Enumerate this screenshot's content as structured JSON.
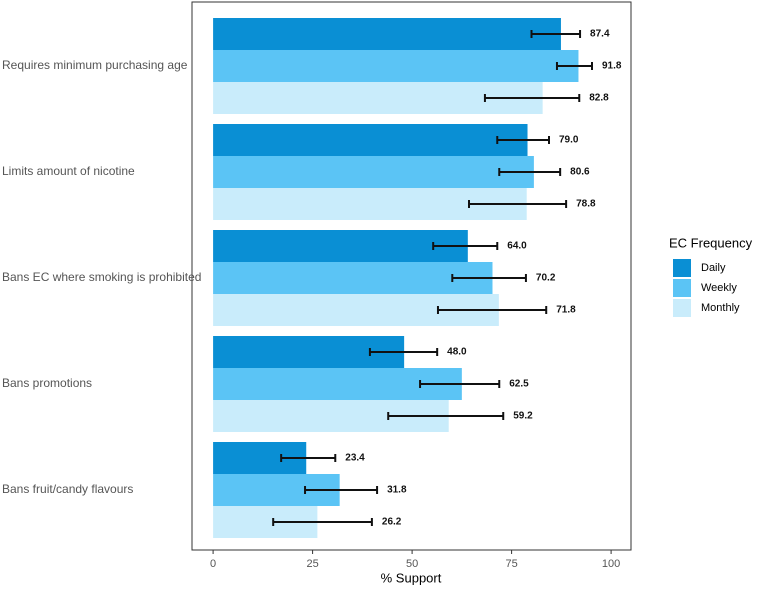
{
  "chart_data": {
    "type": "bar",
    "orientation": "horizontal",
    "x_label": "% Support",
    "legend_title": "EC Frequency",
    "legend_position": "right",
    "grid": false,
    "categories": [
      "Requires minimum purchasing age",
      "Limits amount of nicotine",
      "Bans EC where smoking is prohibited",
      "Bans promotions",
      "Bans fruit/candy flavours"
    ],
    "series": [
      {
        "name": "Daily",
        "color": "#0a8fd4",
        "values": [
          87.4,
          79.0,
          64.0,
          48.0,
          23.4
        ],
        "value_labels": [
          "87.4",
          "79.0",
          "64.0",
          "48.0",
          "23.4"
        ],
        "err_low": [
          80.0,
          71.4,
          55.3,
          39.4,
          17.1
        ],
        "err_high": [
          92.2,
          84.4,
          71.4,
          56.3,
          30.7
        ]
      },
      {
        "name": "Weekly",
        "color": "#5bc4f5",
        "values": [
          91.8,
          80.6,
          70.2,
          62.5,
          31.8
        ],
        "value_labels": [
          "91.8",
          "80.6",
          "70.2",
          "62.5",
          "31.8"
        ],
        "err_low": [
          86.4,
          71.9,
          60.1,
          52.0,
          23.1
        ],
        "err_high": [
          95.2,
          87.2,
          78.6,
          71.9,
          41.2
        ]
      },
      {
        "name": "Monthly",
        "color": "#c9ecfb",
        "values": [
          82.8,
          78.8,
          71.8,
          59.2,
          26.2
        ],
        "value_labels": [
          "82.8",
          "78.8",
          "71.8",
          "59.2",
          "26.2"
        ],
        "err_low": [
          68.3,
          64.3,
          56.5,
          44.0,
          15.1
        ],
        "err_high": [
          92.0,
          88.7,
          83.7,
          72.9,
          39.9
        ]
      }
    ],
    "xlim": [
      -5.3,
      105.0
    ],
    "xticks": [
      0,
      25,
      50,
      75,
      100
    ]
  }
}
